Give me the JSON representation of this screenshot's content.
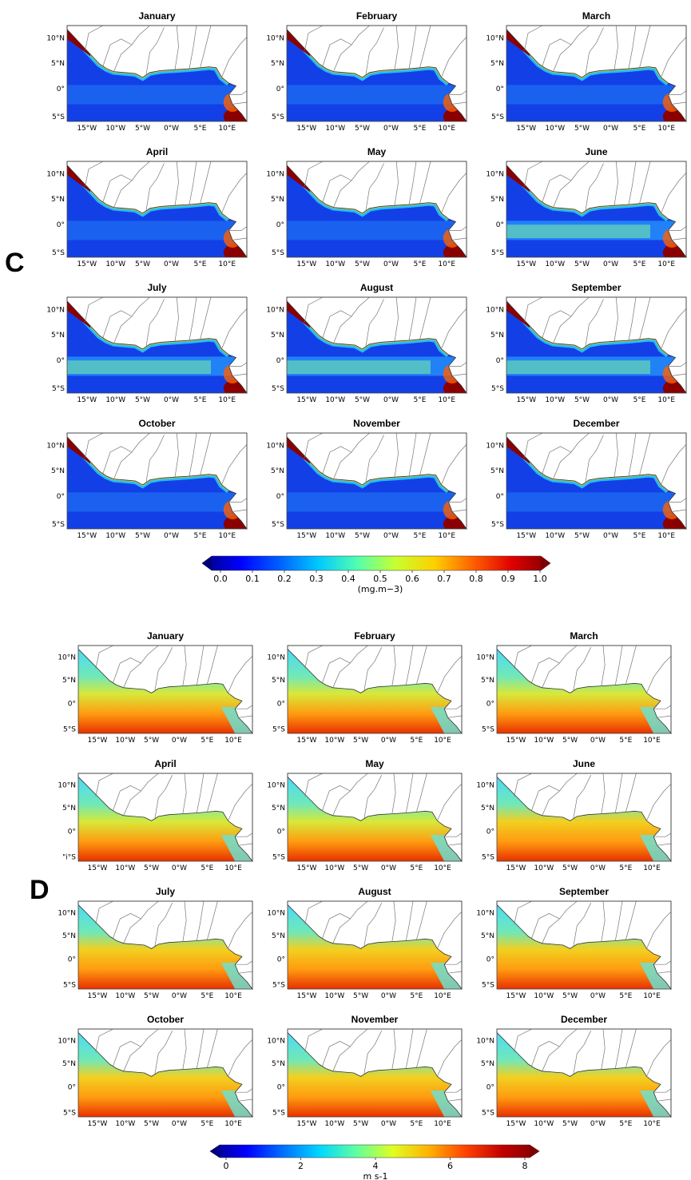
{
  "figures": [
    {
      "panel_label": "C",
      "palette": "chl",
      "months": [
        "January",
        "February",
        "March",
        "April",
        "May",
        "June",
        "July",
        "August",
        "September",
        "October",
        "November",
        "December"
      ],
      "lat_ticks": [
        "10°N",
        "5°N",
        "0°",
        "5°S"
      ],
      "lon_ticks": [
        "15°W",
        "10°W",
        "5°W",
        "0°W",
        "5°E",
        "10°E"
      ],
      "colorbar": {
        "ticks": [
          "0.0",
          "0.1",
          "0.2",
          "0.3",
          "0.4",
          "0.5",
          "0.6",
          "0.7",
          "0.8",
          "0.9",
          "1.0"
        ],
        "unit": "(mg.m−3)",
        "colors": [
          "#00007f",
          "#0000ff",
          "#0060ff",
          "#00c8ff",
          "#50ffb0",
          "#c8ff30",
          "#ffd000",
          "#ff6000",
          "#e00000",
          "#7f0000"
        ]
      }
    },
    {
      "panel_label": "D",
      "palette": "wind",
      "months": [
        "January",
        "February",
        "March",
        "April",
        "May",
        "June",
        "July",
        "August",
        "September",
        "October",
        "November",
        "December"
      ],
      "lat_ticks": [
        "10°N",
        "5°N",
        "0°",
        "5°S"
      ],
      "lat_ticks_april": [
        "10°N",
        "5°N",
        "0°",
        "\"i°S"
      ],
      "lon_ticks": [
        "15°W",
        "10°W",
        "5°W",
        "0°W",
        "5°E",
        "10°E"
      ],
      "colorbar": {
        "ticks": [
          "0",
          "2",
          "4",
          "6",
          "8"
        ],
        "unit": "m s-1",
        "colors": [
          "#00007f",
          "#0000ff",
          "#0070ff",
          "#00d8ff",
          "#60ffa0",
          "#e0ff20",
          "#ffb000",
          "#ff4000",
          "#c00000",
          "#7f0000"
        ]
      }
    }
  ]
}
